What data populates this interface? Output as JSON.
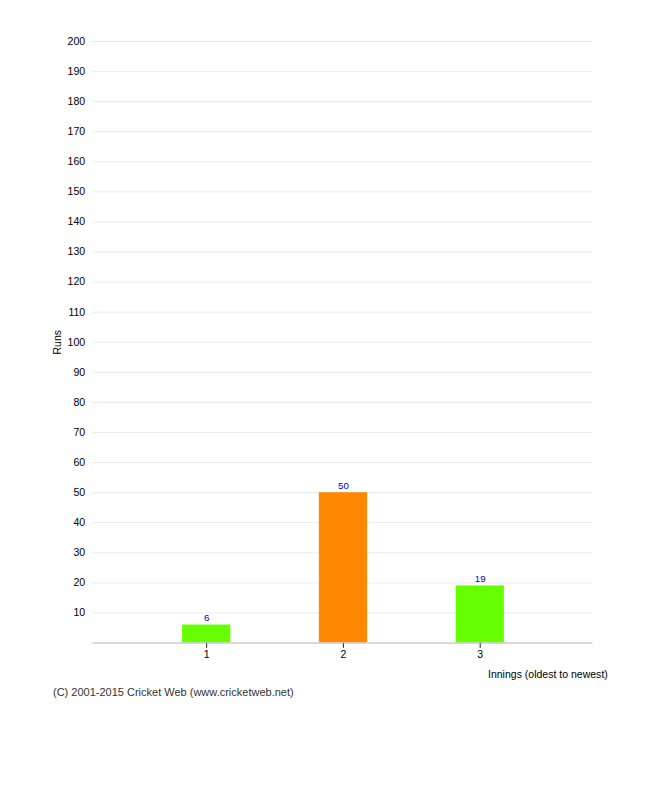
{
  "chart_data": {
    "type": "bar",
    "categories": [
      "1",
      "2",
      "3"
    ],
    "values": [
      6,
      50,
      19
    ],
    "colors": [
      "#66ff00",
      "#ff8800",
      "#66ff00"
    ],
    "ylabel": "Runs",
    "xlabel": "Innings (oldest to newest)",
    "ylim": [
      0,
      200
    ],
    "yticks": [
      10,
      20,
      30,
      40,
      50,
      60,
      70,
      80,
      90,
      100,
      110,
      120,
      130,
      140,
      150,
      160,
      170,
      180,
      190,
      200
    ],
    "grid": true,
    "data_labels": true,
    "footer": "(C) 2001-2015 Cricket Web (www.cricketweb.net)"
  }
}
